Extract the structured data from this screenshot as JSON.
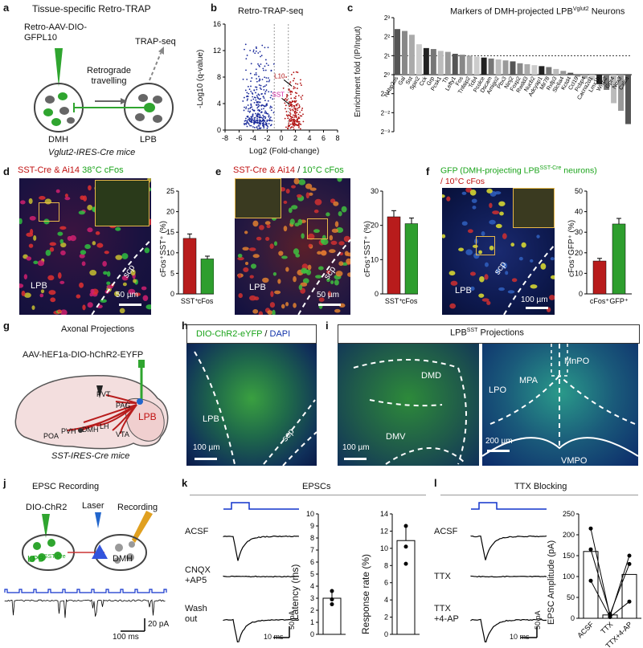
{
  "panels": {
    "a": "a",
    "b": "b",
    "c": "c",
    "d": "d",
    "e": "e",
    "f": "f",
    "g": "g",
    "h": "h",
    "i": "i",
    "j": "j",
    "k": "k",
    "l": "l"
  },
  "a": {
    "title": "Tissue-specific Retro-TRAP",
    "virus": "Retro-AAV-DIO-\nGFPL10",
    "trap": "TRAP-seq",
    "travel": "Retrograde\ntravelling",
    "dmh": "DMH",
    "lpb": "LPB",
    "mouse": "Vglut2-IRES-Cre mice"
  },
  "b": {
    "title": "Retro-TRAP-seq",
    "ylabel": "-Log10 (q-value)",
    "xlabel": "Log2 (Fold-change)",
    "l10": "L10",
    "sst": "SST"
  },
  "c": {
    "title": "Markers of DMH-projected LPB",
    "title_sup": "Vglut2",
    "title_tail": " Neurons",
    "ylabel": "Enrichment fold (IP/Input)"
  },
  "d": {
    "title_red": "SST-Cre & Ai14",
    "title_green": "38°C cFos",
    "lpb": "LPB",
    "scp": "scp",
    "scale": "50 µm",
    "ylabel": "cFos⁺SST⁺ (%)"
  },
  "e": {
    "title_red": "SST-Cre & Ai14",
    "title_green": "10°C cFos",
    "lpb": "LPB",
    "scp": "scp",
    "scale": "50 µm",
    "ylabel": "cFos⁺SST⁺ (%)"
  },
  "f": {
    "title_green": "GFP (DMH-projecting LPB",
    "title_green_sup": "SST-Cre",
    "title_green_tail": " neurons)",
    "title_red": "/ 10°C cFos",
    "lpb": "LPB",
    "scp": "scp",
    "scale": "100 µm",
    "ylabel": "cFos⁺GFP⁺ (%)"
  },
  "g": {
    "title": "Axonal Projections",
    "virus": "AAV-hEF1a-DIO-hChR2-EYFP",
    "regions": [
      "PVT",
      "PAG",
      "LPB",
      "PVH",
      "DMH",
      "LH",
      "VTA",
      "POA"
    ],
    "mouse": "SST-IRES-Cre mice"
  },
  "h": {
    "title_green": "DIO-ChR2-eYFP",
    "title_sep": " / ",
    "title_blue": "DAPI",
    "lpb": "LPB",
    "scp": "scp",
    "scale": "100 µm"
  },
  "i": {
    "title": "LPB",
    "title_sup": "SST",
    "title_tail": " Projections",
    "left": [
      "DMD",
      "DMV"
    ],
    "right": [
      "MnPO",
      "MPA",
      "LPO",
      "VMPO"
    ],
    "scale_left": "100 µm",
    "scale_right": "200 µm"
  },
  "j": {
    "title": "EPSC Recording",
    "virus": "DIO-ChR2",
    "laser": "Laser",
    "recording": "Recording",
    "lpb": "LPB",
    "lpb_sup": "SST-Cre",
    "dmh": "DMH",
    "scale_pa": "20 pA",
    "scale_ms": "100 ms"
  },
  "k": {
    "title": "EPSCs",
    "rows": [
      "ACSF",
      "CNQX\n+AP5",
      "Wash\nout"
    ],
    "scale_pa": "50 pA",
    "scale_ms": "10 ms",
    "lat_ylabel": "Latency (ms)",
    "resp_ylabel": "Response rate (%)"
  },
  "l": {
    "title": "TTX Blocking",
    "rows": [
      "ACSF",
      "TTX",
      "TTX\n+4-AP"
    ],
    "scale_pa": "50 pA",
    "scale_ms": "10 ms",
    "ylabel": "EPSC Amplitude (pA)"
  },
  "chart_data": [
    {
      "type": "scatter",
      "panel": "b",
      "title": "Retro-TRAP-seq",
      "xlabel": "Log2 (Fold-change)",
      "ylabel": "-Log10 (q-value)",
      "xlim": [
        -8,
        8
      ],
      "ylim": [
        0,
        16
      ],
      "xticks": [
        -8,
        -6,
        -4,
        -2,
        0,
        2,
        4,
        6,
        8
      ],
      "yticks": [
        0,
        4,
        8,
        12,
        16
      ],
      "annotations": [
        {
          "label": "L10",
          "x": 1.5,
          "y": 7.6
        },
        {
          "label": "SST",
          "x": 1.2,
          "y": 4.8
        }
      ]
    },
    {
      "type": "bar",
      "panel": "c",
      "title": "Markers of DMH-projected LPB Vglut2 Neurons",
      "ylabel": "Enrichment fold (IP/Input)",
      "ylim_log2": [
        -3,
        3
      ],
      "ytick_labels": [
        "2⁻³",
        "2⁻²",
        "2⁻¹",
        "2⁰",
        "2¹",
        "2²",
        "2³"
      ],
      "categories": [
        "N4bp2os",
        "Gal",
        "Sst",
        "Spin2",
        "Cck",
        "Grp",
        "Pcsk1",
        "Th",
        "Lefty1",
        "Fos",
        "Tnfaip2",
        "Tcb4",
        "Pcolce",
        "Dscam",
        "Amigo2",
        "Pbx3",
        "Ninj2",
        "Foxp2",
        "Rwdd3",
        "Nucb2",
        "Adcyap1",
        "Mir78",
        "Rxfp3",
        "Slc6a4",
        "Kctd4",
        "Ccl19",
        "Pcbp4",
        "Cacna2d1",
        "Lmx1b",
        "Wisp2",
        "Gpr4",
        "Nox3",
        "Calca"
      ],
      "values_log2": [
        2.4,
        2.3,
        2.1,
        1.6,
        1.4,
        1.35,
        1.25,
        1.2,
        1.1,
        1.05,
        1.0,
        0.95,
        0.9,
        0.85,
        0.8,
        0.75,
        0.7,
        0.6,
        0.55,
        0.5,
        0.45,
        0.4,
        0.3,
        0.2,
        0.1,
        -0.1,
        -0.2,
        -0.3,
        -0.5,
        -0.8,
        -1.5,
        -1.9,
        -2.6
      ],
      "reference_line": 1
    },
    {
      "type": "bar",
      "panel": "d",
      "categories": [
        "SST⁺",
        "cFos⁺"
      ],
      "values": [
        13.5,
        8.5
      ],
      "ylabel": "cFos⁺SST⁺ (%)",
      "ylim": [
        0,
        25
      ],
      "yticks": [
        0,
        5,
        10,
        15,
        20,
        25
      ]
    },
    {
      "type": "bar",
      "panel": "e",
      "categories": [
        "SST⁺",
        "cFos⁺"
      ],
      "values": [
        22.5,
        20.5
      ],
      "ylabel": "cFos⁺SST⁺ (%)",
      "ylim": [
        0,
        30
      ],
      "yticks": [
        0,
        10,
        20,
        30
      ]
    },
    {
      "type": "bar",
      "panel": "f",
      "categories": [
        "cFos⁺",
        "GFP⁺"
      ],
      "values": [
        16,
        34
      ],
      "ylabel": "cFos⁺GFP⁺ (%)",
      "ylim": [
        0,
        50
      ],
      "yticks": [
        0,
        10,
        20,
        30,
        40,
        50
      ]
    },
    {
      "type": "bar",
      "panel": "k-latency",
      "categories": [
        ""
      ],
      "values": [
        3.0
      ],
      "points": [
        2.5,
        2.9,
        3.6
      ],
      "ylabel": "Latency (ms)",
      "ylim": [
        0,
        10
      ],
      "yticks": [
        0,
        1,
        2,
        3,
        4,
        5,
        6,
        7,
        8,
        9,
        10
      ]
    },
    {
      "type": "bar",
      "panel": "k-response",
      "categories": [
        ""
      ],
      "values": [
        10.9
      ],
      "points": [
        12.6,
        10.2,
        8.2
      ],
      "ylabel": "Response rate (%)",
      "ylim": [
        0,
        14
      ],
      "yticks": [
        0,
        2,
        4,
        6,
        8,
        10,
        12,
        14
      ]
    },
    {
      "type": "bar",
      "panel": "l",
      "categories": [
        "ACSF",
        "TTX",
        "TTX+4-AP"
      ],
      "values": [
        160,
        8,
        105
      ],
      "series": [
        {
          "values": [
            215,
            5,
            150
          ]
        },
        {
          "values": [
            165,
            10,
            130
          ]
        },
        {
          "values": [
            90,
            3,
            40
          ]
        }
      ],
      "ylabel": "EPSC Amplitude (pA)",
      "ylim": [
        0,
        250
      ],
      "yticks": [
        0,
        50,
        100,
        150,
        200,
        250
      ]
    }
  ],
  "colors": {
    "red": "#b81c1c",
    "green": "#2e9e2e",
    "blue": "#1133aa",
    "dark": "#222"
  }
}
